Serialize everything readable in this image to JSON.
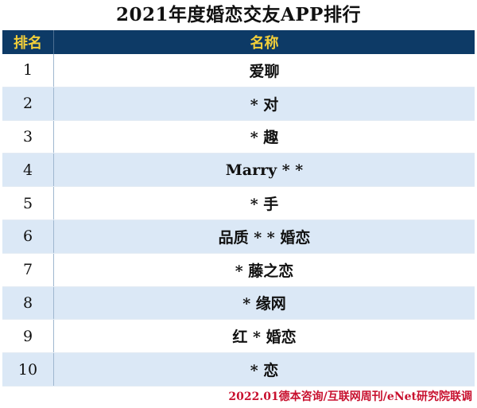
{
  "title": "2021年度婚恋交友APP排行",
  "header": {
    "rank_label": "排名",
    "name_label": "名称"
  },
  "rows": [
    {
      "rank": "1",
      "name": "爱聊"
    },
    {
      "rank": "2",
      "name": "* 对"
    },
    {
      "rank": "3",
      "name": "* 趣"
    },
    {
      "rank": "4",
      "name": "Marry * *"
    },
    {
      "rank": "5",
      "name": "* 手"
    },
    {
      "rank": "6",
      "name": "品质 * * 婚恋"
    },
    {
      "rank": "7",
      "name": "* 藤之恋"
    },
    {
      "rank": "8",
      "name": "* 缘网"
    },
    {
      "rank": "9",
      "name": "红 * 婚恋"
    },
    {
      "rank": "10",
      "name": "* 恋"
    }
  ],
  "source": "2022.01德本咨询/互联网周刊/eNet研究院联调",
  "colors": {
    "header_bg": "#0d3a66",
    "header_text": "#f2cf3a",
    "stripe": "#dbe8f6",
    "source_text": "#c8102e"
  }
}
